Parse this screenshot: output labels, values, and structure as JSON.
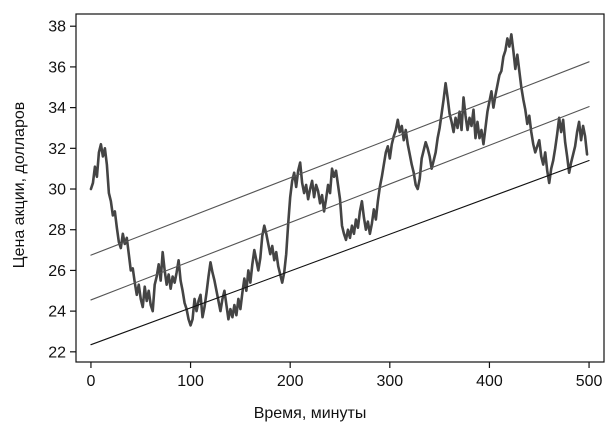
{
  "chart_data": {
    "type": "line",
    "title": "",
    "xlabel": "Время, минуты",
    "ylabel": "Цена акции, долларов",
    "xlim": [
      -15,
      515
    ],
    "ylim": [
      21.5,
      38.6
    ],
    "xticks": [
      0,
      100,
      200,
      300,
      400,
      500
    ],
    "yticks": [
      22,
      24,
      26,
      28,
      30,
      32,
      34,
      36,
      38
    ],
    "grid": false,
    "legend": "none",
    "series": [
      {
        "kind": "price",
        "color": "#444444",
        "points": [
          [
            0,
            30.0
          ],
          [
            2,
            30.3
          ],
          [
            4,
            31.1
          ],
          [
            6,
            30.6
          ],
          [
            8,
            31.8
          ],
          [
            10,
            32.2
          ],
          [
            12,
            31.6
          ],
          [
            14,
            32.0
          ],
          [
            16,
            31.2
          ],
          [
            18,
            29.8
          ],
          [
            20,
            29.4
          ],
          [
            22,
            28.7
          ],
          [
            24,
            28.9
          ],
          [
            26,
            28.1
          ],
          [
            28,
            27.4
          ],
          [
            30,
            27.1
          ],
          [
            32,
            27.8
          ],
          [
            34,
            27.3
          ],
          [
            36,
            27.6
          ],
          [
            38,
            26.8
          ],
          [
            40,
            26.0
          ],
          [
            42,
            26.1
          ],
          [
            44,
            25.4
          ],
          [
            46,
            24.8
          ],
          [
            48,
            25.3
          ],
          [
            50,
            24.6
          ],
          [
            52,
            24.2
          ],
          [
            54,
            25.2
          ],
          [
            56,
            24.5
          ],
          [
            58,
            25.0
          ],
          [
            60,
            24.3
          ],
          [
            62,
            24.0
          ],
          [
            64,
            25.3
          ],
          [
            66,
            25.7
          ],
          [
            68,
            26.3
          ],
          [
            70,
            25.5
          ],
          [
            72,
            26.9
          ],
          [
            74,
            26.0
          ],
          [
            76,
            25.3
          ],
          [
            78,
            25.8
          ],
          [
            80,
            25.1
          ],
          [
            82,
            25.7
          ],
          [
            84,
            25.4
          ],
          [
            86,
            25.9
          ],
          [
            88,
            26.5
          ],
          [
            90,
            25.5
          ],
          [
            92,
            25.0
          ],
          [
            94,
            24.4
          ],
          [
            96,
            24.1
          ],
          [
            98,
            23.6
          ],
          [
            100,
            23.3
          ],
          [
            102,
            23.6
          ],
          [
            104,
            24.6
          ],
          [
            106,
            24.0
          ],
          [
            108,
            24.5
          ],
          [
            110,
            24.8
          ],
          [
            112,
            23.7
          ],
          [
            114,
            24.2
          ],
          [
            116,
            24.9
          ],
          [
            118,
            25.7
          ],
          [
            120,
            26.4
          ],
          [
            122,
            25.9
          ],
          [
            124,
            25.5
          ],
          [
            126,
            25.0
          ],
          [
            128,
            24.5
          ],
          [
            130,
            24.0
          ],
          [
            132,
            24.6
          ],
          [
            134,
            25.0
          ],
          [
            136,
            24.3
          ],
          [
            138,
            23.6
          ],
          [
            140,
            24.1
          ],
          [
            142,
            23.7
          ],
          [
            144,
            24.3
          ],
          [
            146,
            23.8
          ],
          [
            148,
            24.6
          ],
          [
            150,
            24.1
          ],
          [
            152,
            24.9
          ],
          [
            154,
            25.6
          ],
          [
            156,
            25.0
          ],
          [
            158,
            26.0
          ],
          [
            160,
            25.4
          ],
          [
            162,
            26.3
          ],
          [
            164,
            27.0
          ],
          [
            166,
            26.5
          ],
          [
            168,
            26.0
          ],
          [
            170,
            26.6
          ],
          [
            172,
            27.7
          ],
          [
            174,
            28.2
          ],
          [
            176,
            27.8
          ],
          [
            178,
            27.3
          ],
          [
            180,
            26.8
          ],
          [
            182,
            27.2
          ],
          [
            184,
            26.5
          ],
          [
            186,
            26.9
          ],
          [
            188,
            26.2
          ],
          [
            190,
            25.8
          ],
          [
            192,
            25.4
          ],
          [
            194,
            25.9
          ],
          [
            196,
            26.8
          ],
          [
            198,
            28.3
          ],
          [
            200,
            29.6
          ],
          [
            202,
            30.4
          ],
          [
            204,
            30.8
          ],
          [
            206,
            30.1
          ],
          [
            208,
            30.9
          ],
          [
            210,
            31.3
          ],
          [
            212,
            30.3
          ],
          [
            214,
            29.8
          ],
          [
            216,
            30.2
          ],
          [
            218,
            29.5
          ],
          [
            220,
            30.0
          ],
          [
            222,
            30.4
          ],
          [
            224,
            29.6
          ],
          [
            226,
            30.2
          ],
          [
            228,
            29.9
          ],
          [
            230,
            29.3
          ],
          [
            232,
            29.7
          ],
          [
            234,
            28.9
          ],
          [
            236,
            29.5
          ],
          [
            238,
            30.2
          ],
          [
            240,
            29.8
          ],
          [
            242,
            31.0
          ],
          [
            244,
            30.6
          ],
          [
            246,
            30.9
          ],
          [
            248,
            30.2
          ],
          [
            250,
            29.5
          ],
          [
            252,
            28.2
          ],
          [
            254,
            27.8
          ],
          [
            256,
            27.5
          ],
          [
            258,
            28.0
          ],
          [
            260,
            27.6
          ],
          [
            262,
            28.2
          ],
          [
            264,
            27.8
          ],
          [
            266,
            28.5
          ],
          [
            268,
            28.1
          ],
          [
            270,
            28.9
          ],
          [
            272,
            29.4
          ],
          [
            274,
            28.6
          ],
          [
            276,
            28.0
          ],
          [
            278,
            28.4
          ],
          [
            280,
            27.8
          ],
          [
            282,
            28.3
          ],
          [
            284,
            29.0
          ],
          [
            286,
            28.5
          ],
          [
            288,
            29.4
          ],
          [
            290,
            30.1
          ],
          [
            292,
            30.6
          ],
          [
            294,
            31.2
          ],
          [
            296,
            31.8
          ],
          [
            298,
            32.1
          ],
          [
            300,
            31.5
          ],
          [
            302,
            32.2
          ],
          [
            304,
            32.6
          ],
          [
            306,
            32.9
          ],
          [
            308,
            33.4
          ],
          [
            310,
            32.8
          ],
          [
            312,
            33.1
          ],
          [
            314,
            32.4
          ],
          [
            316,
            32.9
          ],
          [
            318,
            32.2
          ],
          [
            320,
            31.7
          ],
          [
            322,
            31.2
          ],
          [
            324,
            30.8
          ],
          [
            326,
            30.2
          ],
          [
            328,
            30.0
          ],
          [
            330,
            30.5
          ],
          [
            332,
            31.5
          ],
          [
            334,
            31.9
          ],
          [
            336,
            32.3
          ],
          [
            338,
            32.0
          ],
          [
            340,
            31.6
          ],
          [
            342,
            31.0
          ],
          [
            344,
            31.4
          ],
          [
            346,
            31.8
          ],
          [
            348,
            32.5
          ],
          [
            350,
            33.0
          ],
          [
            352,
            33.7
          ],
          [
            354,
            34.4
          ],
          [
            356,
            35.2
          ],
          [
            358,
            34.5
          ],
          [
            360,
            33.7
          ],
          [
            362,
            33.3
          ],
          [
            364,
            32.8
          ],
          [
            366,
            33.5
          ],
          [
            368,
            33.0
          ],
          [
            370,
            33.8
          ],
          [
            372,
            32.9
          ],
          [
            374,
            34.5
          ],
          [
            376,
            33.6
          ],
          [
            378,
            32.9
          ],
          [
            380,
            33.5
          ],
          [
            382,
            33.1
          ],
          [
            384,
            33.9
          ],
          [
            386,
            32.5
          ],
          [
            388,
            33.3
          ],
          [
            390,
            32.5
          ],
          [
            392,
            32.9
          ],
          [
            394,
            32.2
          ],
          [
            396,
            33.0
          ],
          [
            398,
            33.8
          ],
          [
            400,
            34.3
          ],
          [
            402,
            34.8
          ],
          [
            404,
            34.0
          ],
          [
            406,
            34.6
          ],
          [
            408,
            35.1
          ],
          [
            410,
            35.6
          ],
          [
            412,
            35.8
          ],
          [
            414,
            36.5
          ],
          [
            416,
            36.8
          ],
          [
            418,
            37.4
          ],
          [
            420,
            37.0
          ],
          [
            422,
            37.6
          ],
          [
            424,
            36.8
          ],
          [
            426,
            35.9
          ],
          [
            428,
            36.6
          ],
          [
            430,
            35.8
          ],
          [
            432,
            35.0
          ],
          [
            434,
            34.4
          ],
          [
            436,
            33.9
          ],
          [
            438,
            33.2
          ],
          [
            440,
            33.6
          ],
          [
            442,
            32.8
          ],
          [
            444,
            32.2
          ],
          [
            446,
            31.8
          ],
          [
            448,
            32.1
          ],
          [
            450,
            32.4
          ],
          [
            452,
            31.6
          ],
          [
            454,
            31.2
          ],
          [
            456,
            31.8
          ],
          [
            458,
            30.9
          ],
          [
            460,
            30.3
          ],
          [
            462,
            31.0
          ],
          [
            464,
            31.4
          ],
          [
            466,
            32.0
          ],
          [
            468,
            32.7
          ],
          [
            470,
            33.5
          ],
          [
            472,
            32.8
          ],
          [
            474,
            33.4
          ],
          [
            476,
            32.3
          ],
          [
            478,
            31.6
          ],
          [
            480,
            30.8
          ],
          [
            482,
            31.3
          ],
          [
            484,
            31.7
          ],
          [
            486,
            32.1
          ],
          [
            488,
            32.8
          ],
          [
            490,
            33.3
          ],
          [
            492,
            32.4
          ],
          [
            494,
            33.1
          ],
          [
            496,
            32.6
          ],
          [
            498,
            31.7
          ]
        ]
      },
      {
        "kind": "upper-trend",
        "color": "#555555",
        "points": [
          [
            0,
            26.75
          ],
          [
            500,
            36.25
          ]
        ]
      },
      {
        "kind": "middle-trend",
        "color": "#555555",
        "points": [
          [
            0,
            24.55
          ],
          [
            500,
            34.05
          ]
        ]
      },
      {
        "kind": "lower-trend",
        "color": "#111111",
        "points": [
          [
            0,
            22.35
          ],
          [
            500,
            31.4
          ]
        ]
      }
    ]
  }
}
